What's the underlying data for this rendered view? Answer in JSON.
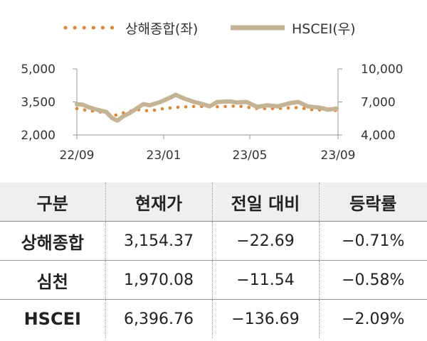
{
  "chart_data": {
    "type": "line",
    "legend_position": "top",
    "grid": false,
    "x_ticks": [
      "22/09",
      "23/01",
      "23/05",
      "23/09"
    ],
    "x_range": [
      "2022-09-01",
      "2023-09-30"
    ],
    "y_left": {
      "ticks": [
        "5,000",
        "3,500",
        "2,000"
      ],
      "range": [
        2000,
        5000
      ]
    },
    "y_right": {
      "ticks": [
        "10,000",
        "7,000",
        "4,000"
      ],
      "range": [
        4000,
        10000
      ]
    },
    "series": [
      {
        "name": "상해종합(좌)",
        "axis": "left",
        "style": "dotted",
        "color": "#e8832a",
        "points": [
          [
            "2022-09-01",
            3200
          ],
          [
            "2022-09-20",
            3100
          ],
          [
            "2022-10-10",
            3030
          ],
          [
            "2022-10-31",
            2900
          ],
          [
            "2022-11-15",
            3050
          ],
          [
            "2022-12-01",
            3150
          ],
          [
            "2022-12-20",
            3090
          ],
          [
            "2023-01-10",
            3200
          ],
          [
            "2023-02-01",
            3260
          ],
          [
            "2023-03-01",
            3300
          ],
          [
            "2023-04-01",
            3280
          ],
          [
            "2023-05-01",
            3320
          ],
          [
            "2023-06-01",
            3200
          ],
          [
            "2023-07-01",
            3200
          ],
          [
            "2023-08-01",
            3250
          ],
          [
            "2023-08-20",
            3150
          ],
          [
            "2023-09-28",
            3110
          ]
        ]
      },
      {
        "name": "HSCEI(우)",
        "axis": "right",
        "style": "solid",
        "color": "#c4b494",
        "points": [
          [
            "2022-09-01",
            6800
          ],
          [
            "2022-09-10",
            6750
          ],
          [
            "2022-09-20",
            6500
          ],
          [
            "2022-10-01",
            6300
          ],
          [
            "2022-10-15",
            6100
          ],
          [
            "2022-10-24",
            5550
          ],
          [
            "2022-11-01",
            5300
          ],
          [
            "2022-11-10",
            5700
          ],
          [
            "2022-11-20",
            6000
          ],
          [
            "2022-11-30",
            6400
          ],
          [
            "2022-12-10",
            6800
          ],
          [
            "2022-12-20",
            6700
          ],
          [
            "2023-01-05",
            7000
          ],
          [
            "2023-01-20",
            7400
          ],
          [
            "2023-01-28",
            7650
          ],
          [
            "2023-02-10",
            7300
          ],
          [
            "2023-02-25",
            7000
          ],
          [
            "2023-03-10",
            6800
          ],
          [
            "2023-03-20",
            6600
          ],
          [
            "2023-04-01",
            7000
          ],
          [
            "2023-04-20",
            7050
          ],
          [
            "2023-05-01",
            6950
          ],
          [
            "2023-05-15",
            7000
          ],
          [
            "2023-05-31",
            6550
          ],
          [
            "2023-06-15",
            6700
          ],
          [
            "2023-07-01",
            6600
          ],
          [
            "2023-07-20",
            6900
          ],
          [
            "2023-08-01",
            7000
          ],
          [
            "2023-08-15",
            6600
          ],
          [
            "2023-09-01",
            6500
          ],
          [
            "2023-09-15",
            6300
          ],
          [
            "2023-09-28",
            6400
          ]
        ]
      }
    ]
  },
  "table": {
    "headers": [
      "구분",
      "현재가",
      "전일 대비",
      "등락률"
    ],
    "rows": [
      [
        "상해종합",
        "3,154.37",
        "−22.69",
        "−0.71%"
      ],
      [
        "심천",
        "1,970.08",
        "−11.54",
        "−0.58%"
      ],
      [
        "HSCEI",
        "6,396.76",
        "−136.69",
        "−2.09%"
      ]
    ]
  }
}
